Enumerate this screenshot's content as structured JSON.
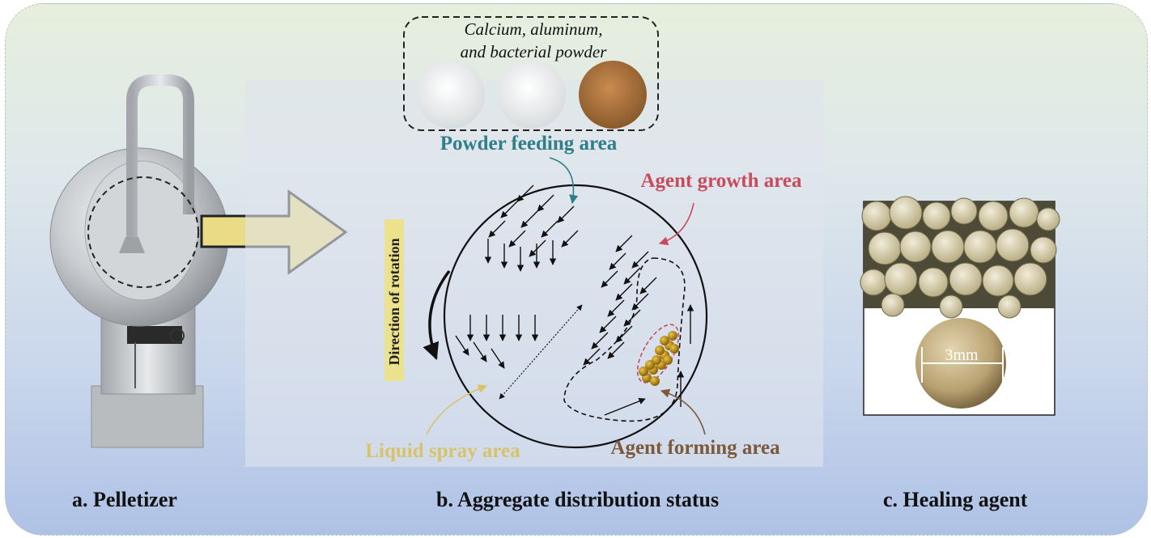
{
  "panels": {
    "a": {
      "caption": "a. Pelletizer"
    },
    "b": {
      "caption": "b. Aggregate distribution status",
      "powder_box": {
        "line1": "Calcium, aluminum,",
        "line2": "and bacterial powder"
      },
      "labels": {
        "powder_feeding": "Powder feeding area",
        "agent_growth": "Agent growth area",
        "liquid_spray": "Liquid spray area",
        "agent_forming": "Agent forming area",
        "rotation": "Direction of rotation"
      }
    },
    "c": {
      "caption": "c. Healing agent",
      "scale_label": "3mm"
    }
  },
  "colors": {
    "powder_feeding": "#2f7f8a",
    "agent_growth": "#c94a5a",
    "liquid_spray": "#d8c36a",
    "agent_forming": "#7a5a3a",
    "big_arrow_fill": "#eadb86",
    "pellet_color": "#b8860b"
  }
}
